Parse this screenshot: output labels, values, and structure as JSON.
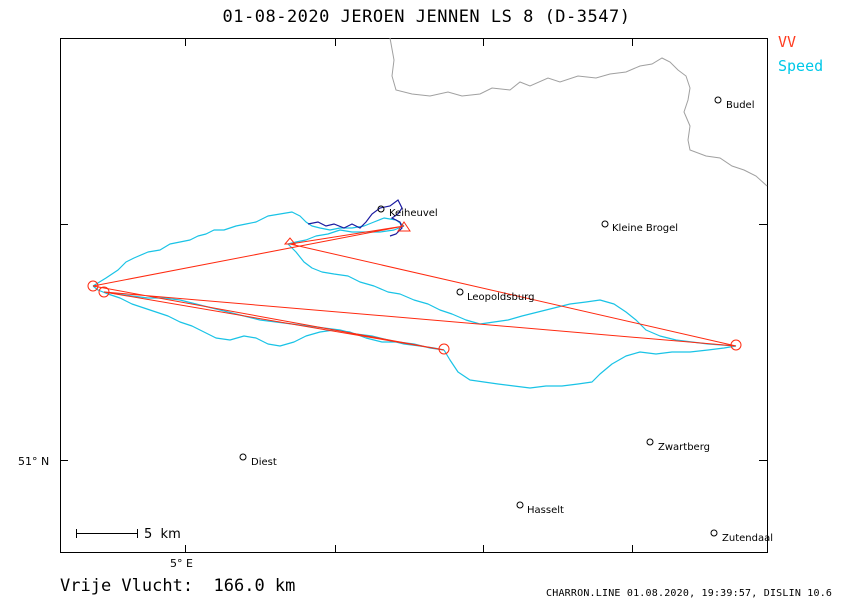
{
  "title": "01-08-2020    JEROEN JENNEN    LS 8 (D-3547)",
  "legend": {
    "vv_label": "VV",
    "speed_label": "Speed",
    "vv_color": "#ff3b1f",
    "speed_color": "#00c8e8"
  },
  "axis": {
    "lat_label": "51° N",
    "lon_label": "5° E"
  },
  "scale_label": "5  km",
  "places": [
    {
      "name": "Budel"
    },
    {
      "name": "Keiheuvel"
    },
    {
      "name": "Kleine Brogel"
    },
    {
      "name": "Leopoldsburg"
    },
    {
      "name": "Zwartberg"
    },
    {
      "name": "Diest"
    },
    {
      "name": "Hasselt"
    },
    {
      "name": "Zutendaal"
    }
  ],
  "footer": {
    "distance": "Vrije Vlucht:  166.0 km",
    "meta": "CHARRON.LINE 01.08.2020, 19:39:57, DISLIN 10.6"
  },
  "colors": {
    "track": "#19c3e6",
    "task": "#ff2a10",
    "climb": "#1a1aa0",
    "border": "#a0a0a0"
  }
}
